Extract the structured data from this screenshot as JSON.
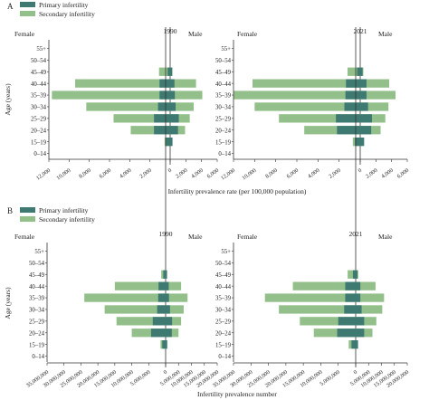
{
  "colors": {
    "primary": "#3f7a72",
    "secondary": "#93c08a",
    "axis": "#333333"
  },
  "legend": [
    {
      "name": "Primary infertility",
      "color": "#3f7a72"
    },
    {
      "name": "Secondary infertility",
      "color": "#93c08a"
    }
  ],
  "chart_data": [
    {
      "type": "bar",
      "orientation": "horizontal-pyramid",
      "panel_label": "A",
      "xlabel": "Infertility prevalence rate (per 100,000 population)",
      "ylabel": "Age (years)",
      "categories": [
        "55+",
        "50–54",
        "45–49",
        "40–44",
        "35–39",
        "30–34",
        "25–29",
        "20–24",
        "15–19",
        "0–14"
      ],
      "left_label": "Female",
      "right_label": "Male",
      "xticks": [
        "12,000",
        "10,000",
        "8,000",
        "6,000",
        "4,000",
        "2,000",
        "0",
        "2,000",
        "4,000",
        "6,000"
      ],
      "xlim_female": 12000,
      "xlim_male": 6000,
      "panels": [
        {
          "year": "1990",
          "series": [
            {
              "name": "Primary infertility",
              "female": [
                0,
                0,
                250,
                1050,
                1050,
                1200,
                1600,
                1600,
                400,
                0
              ],
              "male": [
                0,
                0,
                250,
                550,
                600,
                700,
                1100,
                1000,
                300,
                0
              ]
            },
            {
              "name": "Secondary infertility",
              "female": [
                0,
                0,
                1100,
                9400,
                11700,
                8300,
                5600,
                3900,
                550,
                0
              ],
              "male": [
                0,
                0,
                300,
                3300,
                4100,
                3000,
                2500,
                1900,
                200,
                0
              ]
            }
          ]
        },
        {
          "year": "2021",
          "series": [
            {
              "name": "Primary infertility",
              "female": [
                0,
                0,
                300,
                1350,
                1400,
                1500,
                2300,
                2200,
                500,
                0
              ],
              "male": [
                0,
                0,
                300,
                800,
                800,
                1000,
                1500,
                1400,
                500,
                0
              ]
            },
            {
              "name": "Secondary infertility",
              "female": [
                0,
                0,
                1200,
                10200,
                12000,
                10000,
                7700,
                5300,
                700,
                0
              ],
              "male": [
                0,
                0,
                400,
                3700,
                4500,
                3600,
                3200,
                2600,
                300,
                0
              ]
            }
          ]
        }
      ]
    },
    {
      "type": "bar",
      "orientation": "horizontal-pyramid",
      "panel_label": "B",
      "xlabel": "Infertility prevalence number",
      "ylabel": "Age (years)",
      "categories": [
        "55+",
        "50–54",
        "45–49",
        "40–44",
        "35–39",
        "30–34",
        "25–29",
        "20–24",
        "15–19",
        "0–14"
      ],
      "left_label": "Female",
      "right_label": "Male",
      "xticks": [
        "35,000,000",
        "30,000,000",
        "25,000,000",
        "20,000,000",
        "15,000,000",
        "10,000,000",
        "5,000,000",
        "0",
        "5,000,000",
        "10,000,000",
        "15,000,000",
        "20,000,000"
      ],
      "xlim_female": 35000000,
      "xlim_male": 20000000,
      "panels": [
        {
          "year": "1990",
          "series": [
            {
              "name": "Primary infertility",
              "female": [
                0,
                0,
                700000,
                2100000,
                2200000,
                2500000,
                3800000,
                4300000,
                1000000,
                0
              ],
              "male": [
                0,
                0,
                500000,
                1200000,
                1300000,
                1700000,
                2500000,
                2400000,
                600000,
                0
              ]
            },
            {
              "name": "Secondary infertility",
              "female": [
                0,
                0,
                1300000,
                15000000,
                24000000,
                18000000,
                14500000,
                10000000,
                1500000,
                0
              ],
              "male": [
                0,
                0,
                600000,
                6000000,
                8500000,
                7000000,
                6000000,
                5000000,
                600000,
                0
              ]
            }
          ]
        },
        {
          "year": "2021",
          "series": [
            {
              "name": "Primary infertility",
              "female": [
                0,
                0,
                800000,
                3000000,
                3000000,
                3300000,
                5000000,
                5300000,
                1200000,
                0
              ],
              "male": [
                0,
                0,
                700000,
                1800000,
                1800000,
                2300000,
                3300000,
                3300000,
                900000,
                0
              ]
            },
            {
              "name": "Secondary infertility",
              "female": [
                0,
                0,
                2300000,
                18000000,
                26000000,
                22000000,
                16000000,
                12000000,
                2000000,
                0
              ],
              "male": [
                0,
                0,
                1000000,
                7700000,
                11000000,
                10300000,
                8000000,
                6500000,
                900000,
                0
              ]
            }
          ]
        }
      ]
    }
  ]
}
